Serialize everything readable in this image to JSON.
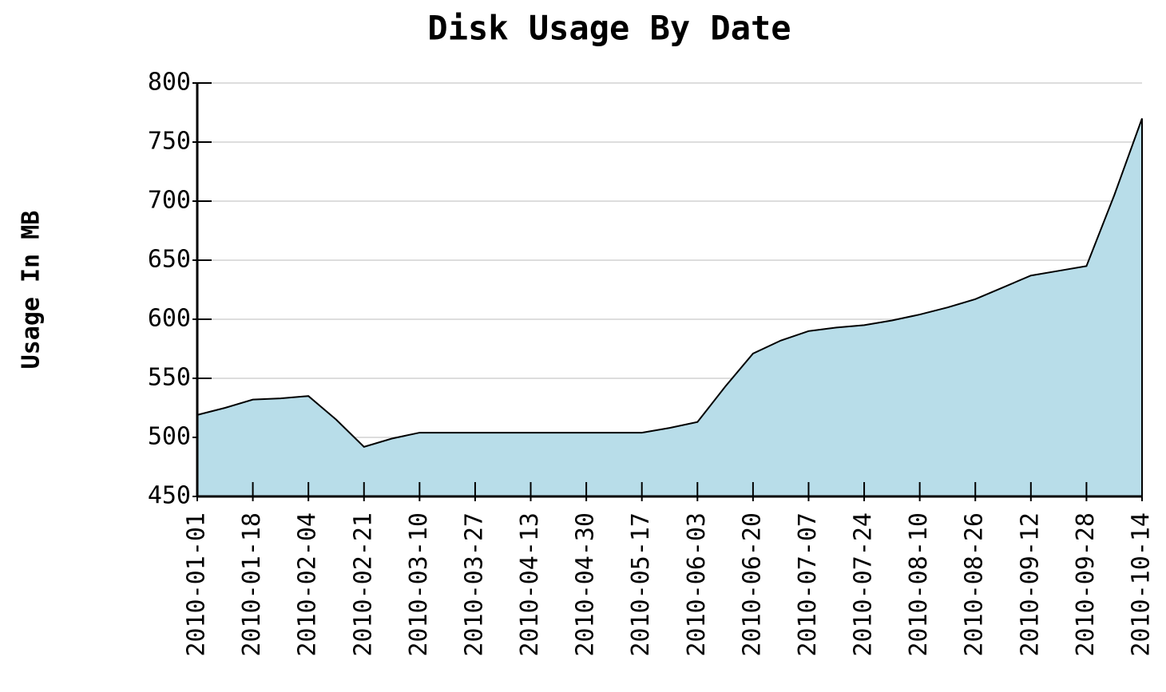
{
  "chart_data": {
    "type": "area",
    "title": "Disk Usage By Date",
    "y_label": "Usage In MB",
    "categories": [
      "2010-01-01",
      null,
      "2010-01-18",
      null,
      "2010-02-04",
      null,
      "2010-02-21",
      null,
      "2010-03-10",
      null,
      "2010-03-27",
      null,
      "2010-04-13",
      null,
      "2010-04-30",
      null,
      "2010-05-17",
      null,
      "2010-06-03",
      null,
      "2010-06-20",
      null,
      "2010-07-07",
      null,
      "2010-07-24",
      null,
      "2010-08-10",
      null,
      "2010-08-26",
      null,
      "2010-09-12",
      null,
      "2010-09-28",
      null,
      "2010-10-14"
    ],
    "values": [
      519,
      525,
      532,
      533,
      535,
      515,
      492,
      499,
      504,
      504,
      504,
      504,
      504,
      504,
      504,
      504,
      504,
      508,
      513,
      543,
      571,
      582,
      590,
      593,
      595,
      599,
      604,
      610,
      617,
      627,
      637,
      641,
      645,
      705,
      770
    ],
    "color": "#b8dde9",
    "line_color": "#000000",
    "ylim": [
      450,
      800
    ],
    "yticks": [
      450,
      500,
      550,
      600,
      650,
      700,
      750,
      800
    ],
    "grid": true
  }
}
